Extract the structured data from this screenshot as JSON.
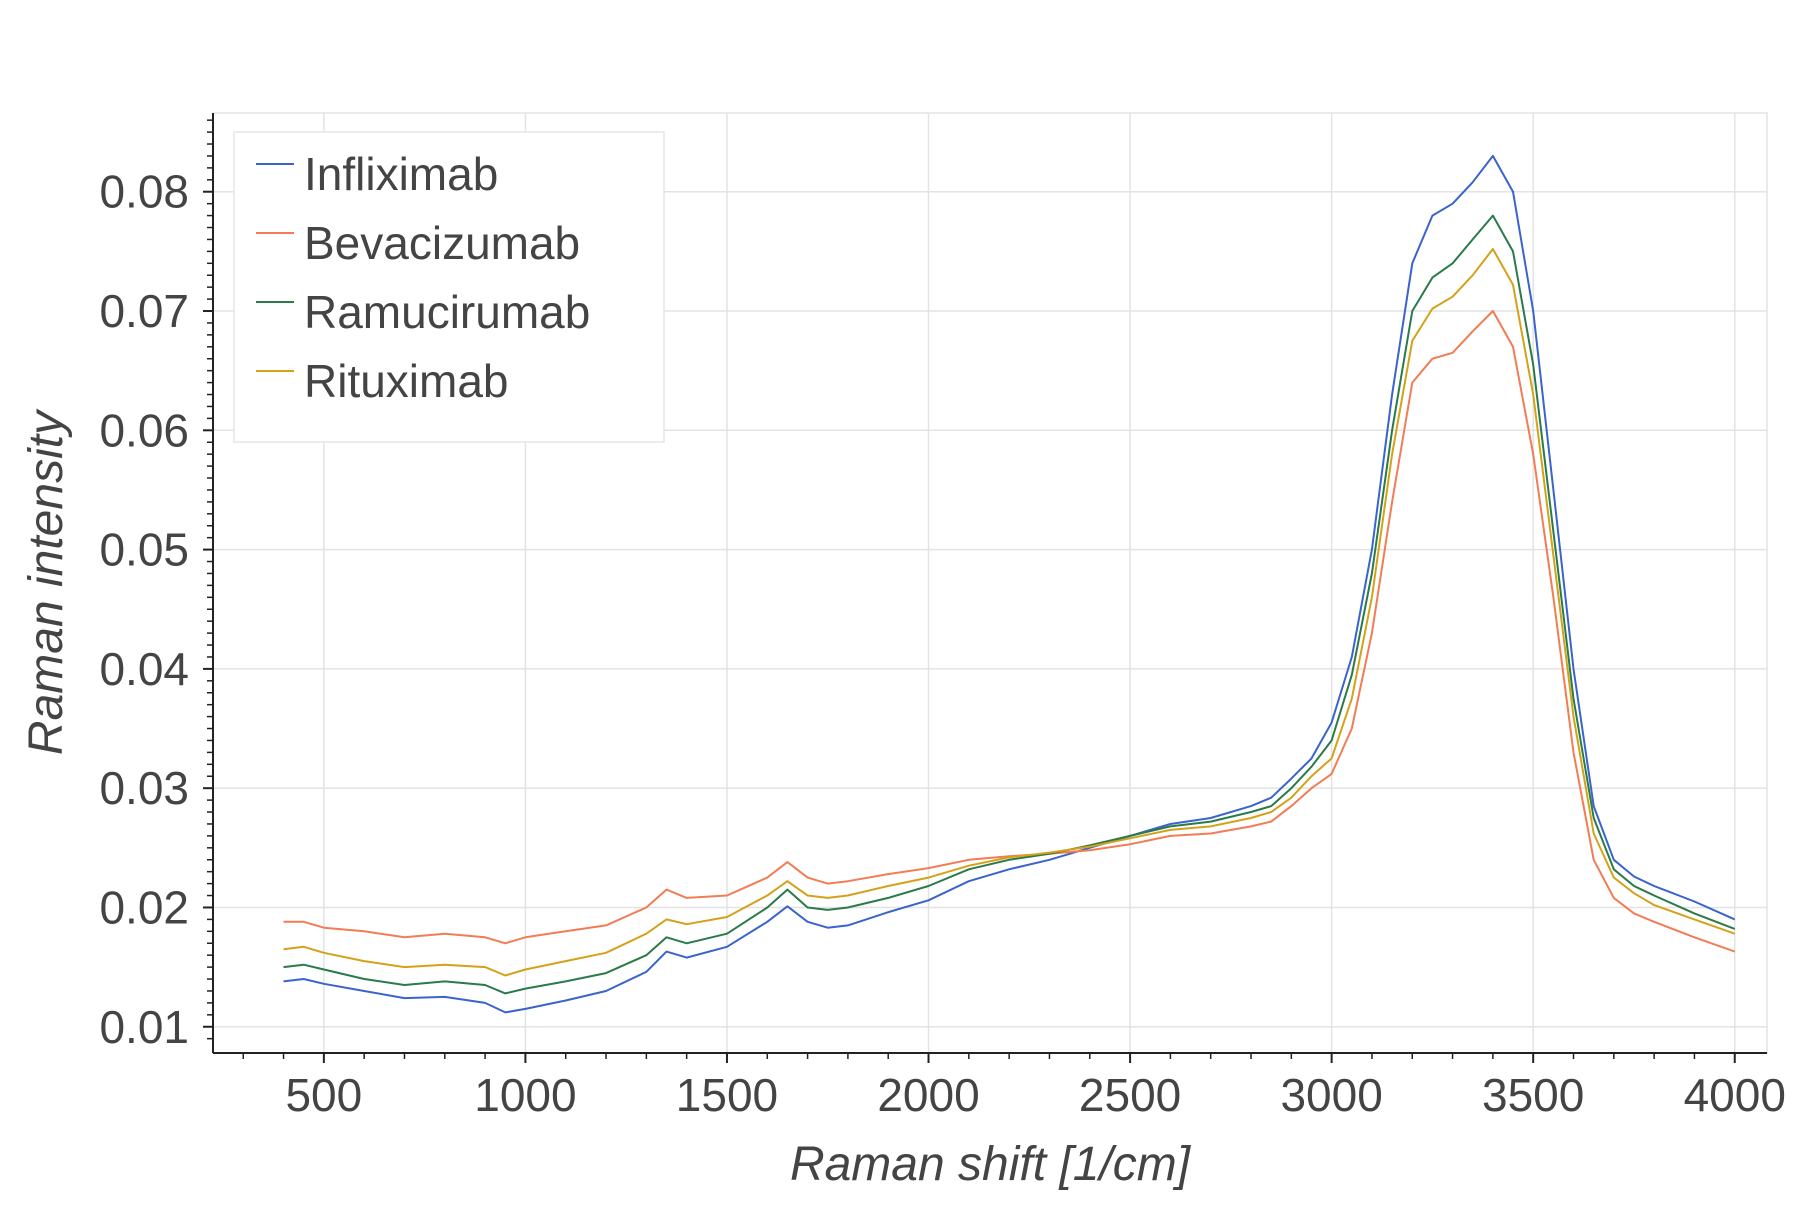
{
  "chart_data": {
    "type": "line",
    "title": "",
    "xlabel": "Raman shift [1/cm]",
    "ylabel": "Raman intensity",
    "xlim": [
      225,
      4080
    ],
    "ylim": [
      0.0078,
      0.0866
    ],
    "xticks": [
      500,
      1000,
      1500,
      2000,
      2500,
      3000,
      3500,
      4000
    ],
    "xtick_labels": [
      "500",
      "1000",
      "1500",
      "2000",
      "2500",
      "3000",
      "3500",
      "4000"
    ],
    "yticks": [
      0.01,
      0.02,
      0.03,
      0.04,
      0.05,
      0.06,
      0.07,
      0.08
    ],
    "ytick_labels": [
      "0.01",
      "0.02",
      "0.03",
      "0.04",
      "0.05",
      "0.06",
      "0.07",
      "0.08"
    ],
    "grid": true,
    "legend": "top-left",
    "x": [
      400,
      450,
      500,
      600,
      700,
      800,
      900,
      950,
      1000,
      1100,
      1200,
      1300,
      1350,
      1400,
      1500,
      1600,
      1650,
      1700,
      1750,
      1800,
      1900,
      2000,
      2100,
      2200,
      2300,
      2400,
      2500,
      2600,
      2700,
      2800,
      2850,
      2900,
      2950,
      3000,
      3050,
      3100,
      3150,
      3200,
      3250,
      3300,
      3350,
      3400,
      3450,
      3500,
      3550,
      3600,
      3650,
      3700,
      3750,
      3800,
      3900,
      4000
    ],
    "series": [
      {
        "name": "Infliximab",
        "color": "#3a63cc",
        "values": [
          0.0138,
          0.014,
          0.0136,
          0.013,
          0.0124,
          0.0125,
          0.012,
          0.0112,
          0.0115,
          0.0122,
          0.013,
          0.0146,
          0.0163,
          0.0158,
          0.0167,
          0.0188,
          0.0201,
          0.0188,
          0.0183,
          0.0185,
          0.0196,
          0.0206,
          0.0222,
          0.0232,
          0.024,
          0.025,
          0.026,
          0.027,
          0.0275,
          0.0285,
          0.0292,
          0.0308,
          0.0325,
          0.0355,
          0.041,
          0.05,
          0.063,
          0.074,
          0.078,
          0.079,
          0.0808,
          0.083,
          0.08,
          0.07,
          0.055,
          0.04,
          0.0285,
          0.024,
          0.0226,
          0.0218,
          0.0205,
          0.019
        ]
      },
      {
        "name": "Bevacizumab",
        "color": "#f27c55",
        "values": [
          0.0188,
          0.0188,
          0.0183,
          0.018,
          0.0175,
          0.0178,
          0.0175,
          0.017,
          0.0175,
          0.018,
          0.0185,
          0.02,
          0.0215,
          0.0208,
          0.021,
          0.0225,
          0.0238,
          0.0225,
          0.022,
          0.0222,
          0.0228,
          0.0233,
          0.024,
          0.0243,
          0.0245,
          0.0248,
          0.0253,
          0.026,
          0.0262,
          0.0268,
          0.0272,
          0.0285,
          0.03,
          0.0312,
          0.035,
          0.043,
          0.054,
          0.064,
          0.066,
          0.0665,
          0.0683,
          0.07,
          0.067,
          0.058,
          0.046,
          0.033,
          0.024,
          0.0208,
          0.0195,
          0.0188,
          0.0175,
          0.0163
        ]
      },
      {
        "name": "Ramucirumab",
        "color": "#2a7a4a",
        "values": [
          0.015,
          0.0152,
          0.0148,
          0.014,
          0.0135,
          0.0138,
          0.0135,
          0.0128,
          0.0132,
          0.0138,
          0.0145,
          0.016,
          0.0175,
          0.017,
          0.0178,
          0.02,
          0.0215,
          0.02,
          0.0198,
          0.02,
          0.0208,
          0.0218,
          0.0232,
          0.024,
          0.0245,
          0.0252,
          0.026,
          0.0268,
          0.0272,
          0.028,
          0.0285,
          0.03,
          0.0318,
          0.034,
          0.0395,
          0.048,
          0.06,
          0.07,
          0.0728,
          0.074,
          0.076,
          0.078,
          0.075,
          0.0655,
          0.0515,
          0.0375,
          0.0275,
          0.0232,
          0.0218,
          0.021,
          0.0195,
          0.0182
        ]
      },
      {
        "name": "Rituximab",
        "color": "#d4a21a",
        "values": [
          0.0165,
          0.0167,
          0.0162,
          0.0155,
          0.015,
          0.0152,
          0.015,
          0.0143,
          0.0148,
          0.0155,
          0.0162,
          0.0178,
          0.019,
          0.0186,
          0.0192,
          0.021,
          0.0222,
          0.021,
          0.0208,
          0.021,
          0.0218,
          0.0225,
          0.0235,
          0.0242,
          0.0246,
          0.0251,
          0.0258,
          0.0265,
          0.0268,
          0.0275,
          0.028,
          0.0292,
          0.031,
          0.0325,
          0.0375,
          0.046,
          0.058,
          0.0675,
          0.0702,
          0.0712,
          0.073,
          0.0752,
          0.0722,
          0.063,
          0.0495,
          0.036,
          0.0262,
          0.0225,
          0.0212,
          0.0202,
          0.019,
          0.0178
        ]
      }
    ]
  }
}
